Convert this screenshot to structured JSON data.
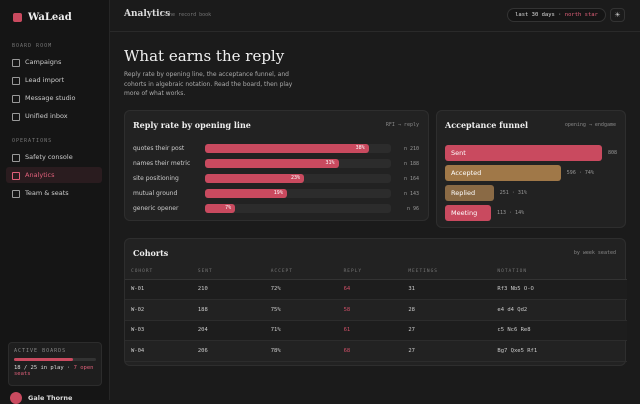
{
  "sidebar": {
    "brand": "WaLead",
    "sections": [
      {
        "label": "BOARD ROOM",
        "items": [
          "Campaigns",
          "Lead import",
          "Message studio",
          "Unified inbox"
        ]
      },
      {
        "label": "OPERATIONS",
        "items": [
          "Safety console",
          "Analytics",
          "Team & seats"
        ]
      }
    ],
    "active": "Analytics",
    "boards": {
      "label": "ACTIVE BOARDS",
      "in_play": 18,
      "total": 25,
      "text": "18 / 25 in play",
      "open": "7 open seats"
    },
    "user": "Gale Thorne"
  },
  "header": {
    "title": "Analytics",
    "subtitle": "the record book",
    "range": "last 30 days",
    "metric": "north star"
  },
  "hero": {
    "title": "What earns the reply",
    "text": "Reply rate by opening line, the acceptance funnel, and cohorts in algebraic notation. Read the board, then play more of what works."
  },
  "reply_rate": {
    "title": "Reply rate by opening line",
    "note": "RFI → reply",
    "rows": [
      {
        "label": "quotes their post",
        "value": 38,
        "value_label": "38%",
        "n": "n 210"
      },
      {
        "label": "names their metric",
        "value": 31,
        "value_label": "31%",
        "n": "n 188"
      },
      {
        "label": "site positioning",
        "value": 23,
        "value_label": "23%",
        "n": "n 164"
      },
      {
        "label": "mutual ground",
        "value": 19,
        "value_label": "19%",
        "n": "n 143"
      },
      {
        "label": "generic opener",
        "value": 7,
        "value_label": "7%",
        "n": "n 96"
      }
    ]
  },
  "funnel": {
    "title": "Acceptance funnel",
    "note": "opening → endgame",
    "stages": [
      {
        "label": "Sent",
        "value": 808,
        "detail": "808"
      },
      {
        "label": "Accepted",
        "value": 596,
        "detail": "596 · 74%"
      },
      {
        "label": "Replied",
        "value": 251,
        "detail": "251 · 31%"
      },
      {
        "label": "Meeting",
        "value": 113,
        "detail": "113 · 14%"
      }
    ]
  },
  "cohorts": {
    "title": "Cohorts",
    "note": "by week seated",
    "columns": [
      "COHORT",
      "SENT",
      "ACCEPT",
      "REPLY",
      "MEETINGS",
      "NOTATION"
    ],
    "rows": [
      [
        "W-01",
        "210",
        "72%",
        "64",
        "31",
        "Rf3 Nb5 O-O"
      ],
      [
        "W-02",
        "188",
        "75%",
        "58",
        "28",
        "e4 d4 Qd2"
      ],
      [
        "W-03",
        "204",
        "71%",
        "61",
        "27",
        "c5 Nc6 Re8"
      ],
      [
        "W-04",
        "206",
        "78%",
        "68",
        "27",
        "Bg7 Qxe5 Rf1"
      ]
    ]
  }
}
